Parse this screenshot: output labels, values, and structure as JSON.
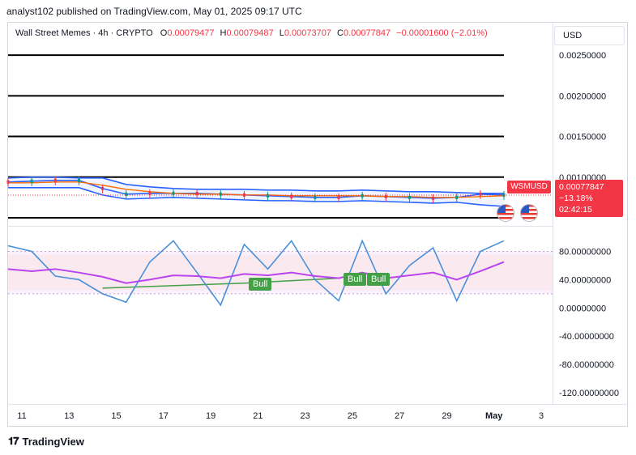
{
  "header": {
    "publisher_line": "analyst102 published on TradingView.com, May 01, 2025 09:17 UTC"
  },
  "legend": {
    "title": "Wall Street Memes · 4h · CRYPTO",
    "o_key": "O",
    "o_val": "0.00079477",
    "h_key": "H",
    "h_val": "0.00079487",
    "l_key": "L",
    "l_val": "0.00073707",
    "c_key": "C",
    "c_val": "0.00077847",
    "change": "−0.00001600 (−2.01%)"
  },
  "currency": "USD",
  "price_tag": {
    "symbol": "WSMUSD",
    "price": "0.00077847",
    "change": "−13.18%",
    "countdown": "02:42:15"
  },
  "bull_labels": [
    "Bull",
    "Bull",
    "Bull"
  ],
  "logo_text": "TradingView",
  "colors": {
    "accent_red": "#f23645",
    "bb_band": "#2962ff",
    "ma_orange": "#ff6d00",
    "rsi_purple": "#bb44ee",
    "stoch_blue": "#4a90d9",
    "bull_green": "#43a047"
  },
  "chart_data": [
    {
      "type": "line",
      "title": "Wall Street Memes · 4h · CRYPTO",
      "x_ticks": [
        "11",
        "13",
        "15",
        "17",
        "19",
        "21",
        "23",
        "25",
        "27",
        "29",
        "May",
        "3"
      ],
      "y_ticks": [
        "0.00250000",
        "0.00200000",
        "0.00150000",
        "0.00100000"
      ],
      "ylim": [
        0.0004,
        0.0029
      ],
      "horizontal_levels": [
        0.0025,
        0.002,
        0.0015,
        0.001,
        0.0005
      ],
      "x": [
        "11",
        "12",
        "13",
        "14",
        "15",
        "16",
        "17",
        "18",
        "19",
        "20",
        "21",
        "22",
        "23",
        "24",
        "25",
        "26",
        "27",
        "28",
        "29",
        "30",
        "May",
        "2"
      ],
      "series": [
        {
          "name": "",
          "values": [
            0.00094,
            0.00095,
            0.00096,
            0.00096,
            0.00086,
            0.00079,
            0.0008,
            0.0008,
            0.0008,
            0.00079,
            0.00078,
            0.00077,
            0.00076,
            0.00075,
            0.00075,
            0.00077,
            0.00076,
            0.00075,
            0.00074,
            0.00075,
            0.00079,
            0.00078
          ]
        },
        {
          "name": "",
          "values": [
            0.00099,
            0.001,
            0.001,
            0.00099,
            0.00099,
            0.00091,
            0.00088,
            0.00086,
            0.00085,
            0.00085,
            0.00085,
            0.00084,
            0.00084,
            0.00083,
            0.00083,
            0.00084,
            0.00083,
            0.00082,
            0.00082,
            0.00081,
            0.0008,
            0.0008
          ]
        },
        {
          "name": "",
          "values": [
            0.00087,
            0.00087,
            0.00087,
            0.00087,
            0.00078,
            0.00073,
            0.00074,
            0.00075,
            0.00074,
            0.00073,
            0.00072,
            0.00071,
            0.00071,
            0.0007,
            0.0007,
            0.00071,
            0.0007,
            0.00069,
            0.00068,
            0.00069,
            0.00066,
            0.00064
          ]
        },
        {
          "name": "",
          "values": [
            0.00093,
            0.00093,
            0.00094,
            0.00094,
            0.0009,
            0.00085,
            0.00082,
            0.0008,
            0.00079,
            0.00079,
            0.00078,
            0.00078,
            0.00077,
            0.00077,
            0.00077,
            0.00077,
            0.00076,
            0.00076,
            0.00075,
            0.00075,
            0.00076,
            0.00077
          ]
        }
      ],
      "last_price": 0.00077847,
      "legend": "top-left",
      "grid": false
    },
    {
      "type": "line",
      "title": "",
      "y_ticks": [
        "80.00000000",
        "40.00000000",
        "0.00000000",
        "-40.00000000",
        "-80.00000000",
        "-120.00000000"
      ],
      "ylim": [
        -135,
        115
      ],
      "band": [
        20,
        80
      ],
      "x": [
        "11",
        "12",
        "13",
        "14",
        "15",
        "16",
        "17",
        "18",
        "19",
        "20",
        "21",
        "22",
        "23",
        "24",
        "25",
        "26",
        "27",
        "28",
        "29",
        "30",
        "May",
        "2"
      ],
      "series": [
        {
          "name": "",
          "values": [
            88,
            80,
            45,
            40,
            20,
            8,
            65,
            95,
            50,
            4,
            90,
            55,
            95,
            40,
            10,
            95,
            20,
            60,
            85,
            10,
            80,
            95
          ]
        },
        {
          "name": "",
          "values": [
            55,
            52,
            55,
            50,
            44,
            35,
            40,
            46,
            45,
            42,
            48,
            46,
            50,
            45,
            42,
            50,
            42,
            46,
            50,
            40,
            52,
            65
          ]
        }
      ],
      "divergence_lines": [
        {
          "x": [
            "15",
            "21"
          ],
          "y": [
            28,
            35
          ]
        },
        {
          "x": [
            "21",
            "25"
          ],
          "y": [
            35,
            42
          ]
        }
      ]
    }
  ]
}
